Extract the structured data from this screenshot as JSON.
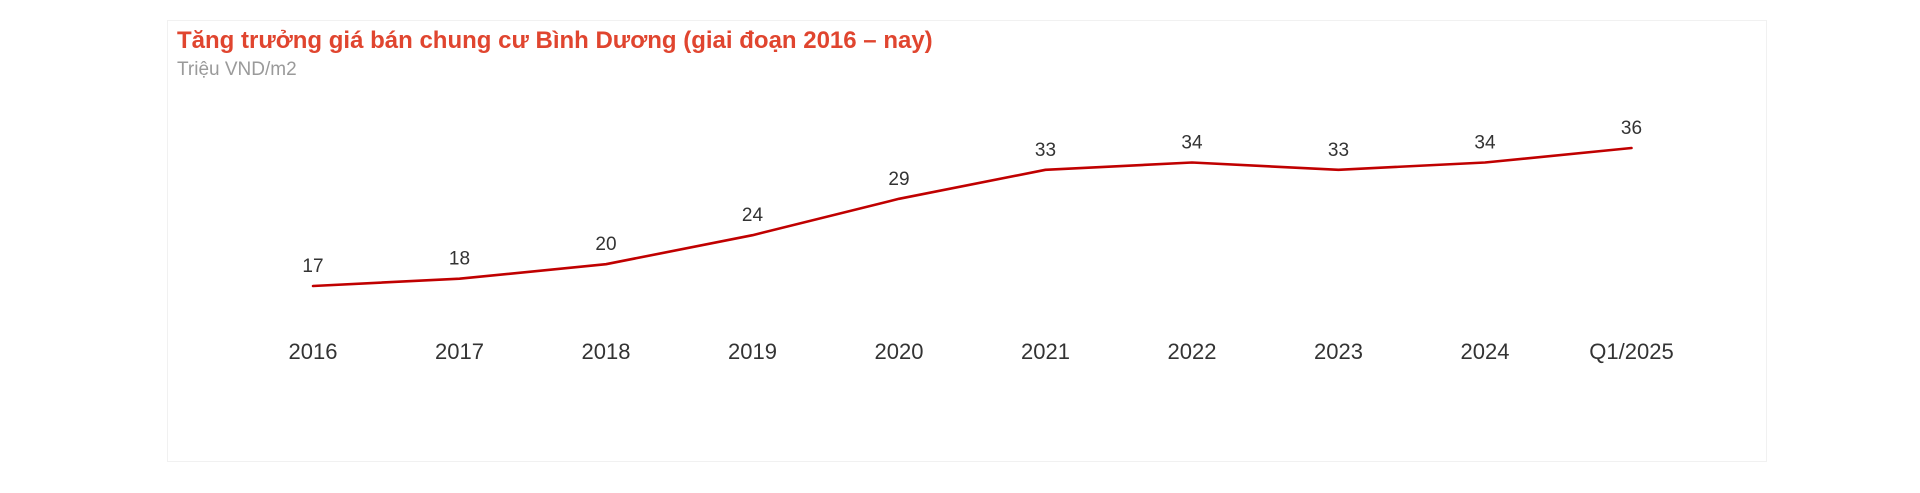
{
  "chart_data": {
    "type": "line",
    "title": "Tăng trưởng giá bán chung cư Bình Dương (giai đoạn 2016 – nay)",
    "subtitle": "Triệu VND/m2",
    "categories": [
      "2016",
      "2017",
      "2018",
      "2019",
      "2020",
      "2021",
      "2022",
      "2023",
      "2024",
      "Q1/2025"
    ],
    "series": [
      {
        "values": [
          17,
          18,
          20,
          24,
          29,
          33,
          34,
          33,
          34,
          36
        ],
        "color": "#c00000"
      }
    ],
    "data_labels": true,
    "grid": false,
    "legend": "none",
    "y_axis_visible": false
  },
  "colors": {
    "title": "#e0452f",
    "subtitle": "#9a9a9a",
    "line": "#c00000",
    "text": "#333333"
  }
}
